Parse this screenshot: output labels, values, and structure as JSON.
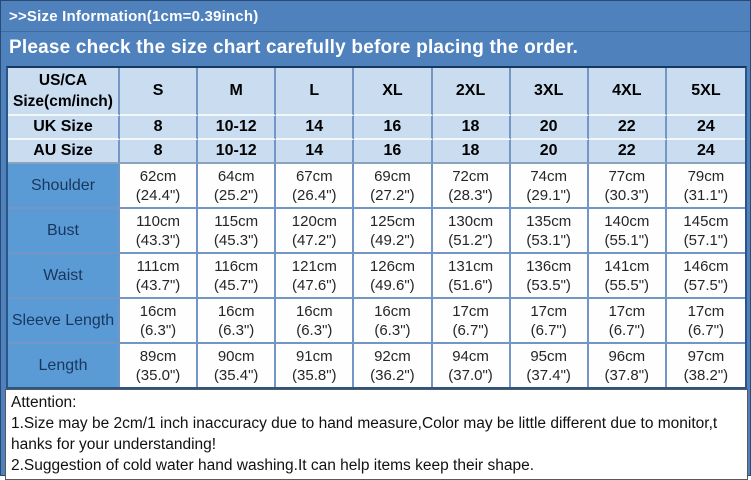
{
  "banner": {
    "title": ">>Size Information(1cm=0.39inch)",
    "subtitle": "Please check the size chart carefully before placing the order."
  },
  "table": {
    "corner_line1": "US/CA",
    "corner_line2": "Size(cm/inch)",
    "size_columns": [
      "S",
      "M",
      "L",
      "XL",
      "2XL",
      "3XL",
      "4XL",
      "5XL"
    ],
    "conversion_rows": [
      {
        "label": "UK Size",
        "values": [
          "8",
          "10-12",
          "14",
          "16",
          "18",
          "20",
          "22",
          "24"
        ]
      },
      {
        "label": "AU Size",
        "values": [
          "8",
          "10-12",
          "14",
          "16",
          "18",
          "20",
          "22",
          "24"
        ]
      }
    ],
    "measurement_rows": [
      {
        "label": "Shoulder",
        "cells": [
          {
            "cm": "62cm",
            "inch": "(24.4\")"
          },
          {
            "cm": "64cm",
            "inch": "(25.2\")"
          },
          {
            "cm": "67cm",
            "inch": "(26.4\")"
          },
          {
            "cm": "69cm",
            "inch": "(27.2\")"
          },
          {
            "cm": "72cm",
            "inch": "(28.3\")"
          },
          {
            "cm": "74cm",
            "inch": "(29.1\")"
          },
          {
            "cm": "77cm",
            "inch": "(30.3\")"
          },
          {
            "cm": "79cm",
            "inch": "(31.1\")"
          }
        ]
      },
      {
        "label": "Bust",
        "cells": [
          {
            "cm": "110cm",
            "inch": "(43.3\")"
          },
          {
            "cm": "115cm",
            "inch": "(45.3\")"
          },
          {
            "cm": "120cm",
            "inch": "(47.2\")"
          },
          {
            "cm": "125cm",
            "inch": "(49.2\")"
          },
          {
            "cm": "130cm",
            "inch": "(51.2\")"
          },
          {
            "cm": "135cm",
            "inch": "(53.1\")"
          },
          {
            "cm": "140cm",
            "inch": "(55.1\")"
          },
          {
            "cm": "145cm",
            "inch": "(57.1\")"
          }
        ]
      },
      {
        "label": "Waist",
        "cells": [
          {
            "cm": "111cm",
            "inch": "(43.7\")"
          },
          {
            "cm": "116cm",
            "inch": "(45.7\")"
          },
          {
            "cm": "121cm",
            "inch": "(47.6\")"
          },
          {
            "cm": "126cm",
            "inch": "(49.6\")"
          },
          {
            "cm": "131cm",
            "inch": "(51.6\")"
          },
          {
            "cm": "136cm",
            "inch": "(53.5\")"
          },
          {
            "cm": "141cm",
            "inch": "(55.5\")"
          },
          {
            "cm": "146cm",
            "inch": "(57.5\")"
          }
        ]
      },
      {
        "label": "Sleeve Length",
        "cells": [
          {
            "cm": "16cm",
            "inch": "(6.3\")"
          },
          {
            "cm": "16cm",
            "inch": "(6.3\")"
          },
          {
            "cm": "16cm",
            "inch": "(6.3\")"
          },
          {
            "cm": "16cm",
            "inch": "(6.3\")"
          },
          {
            "cm": "17cm",
            "inch": "(6.7\")"
          },
          {
            "cm": "17cm",
            "inch": "(6.7\")"
          },
          {
            "cm": "17cm",
            "inch": "(6.7\")"
          },
          {
            "cm": "17cm",
            "inch": "(6.7\")"
          }
        ]
      },
      {
        "label": "Length",
        "cells": [
          {
            "cm": "89cm",
            "inch": "(35.0\")"
          },
          {
            "cm": "90cm",
            "inch": "(35.4\")"
          },
          {
            "cm": "91cm",
            "inch": "(35.8\")"
          },
          {
            "cm": "92cm",
            "inch": "(36.2\")"
          },
          {
            "cm": "94cm",
            "inch": "(37.0\")"
          },
          {
            "cm": "95cm",
            "inch": "(37.4\")"
          },
          {
            "cm": "96cm",
            "inch": "(37.8\")"
          },
          {
            "cm": "97cm",
            "inch": "(38.2\")"
          }
        ]
      }
    ]
  },
  "attention": {
    "heading": "Attention:",
    "lines": [
      "1.Size may be 2cm/1 inch inaccuracy due to hand measure,Color may be little different due to monitor,t",
      "hanks for your understanding!",
      "2.Suggestion of cold water hand washing.It can help items keep their shape."
    ]
  },
  "colors": {
    "banner_blue": "#4F81BD",
    "header_light_blue": "#C9DCF0",
    "row_label_blue": "#5B9BD5",
    "grid_line_blue": "#7396C4",
    "table_outer_border": "#17375E",
    "label_text_navy": "#17375E",
    "banner_text": "#FFFFFF",
    "attention_border_gray": "#595959"
  }
}
